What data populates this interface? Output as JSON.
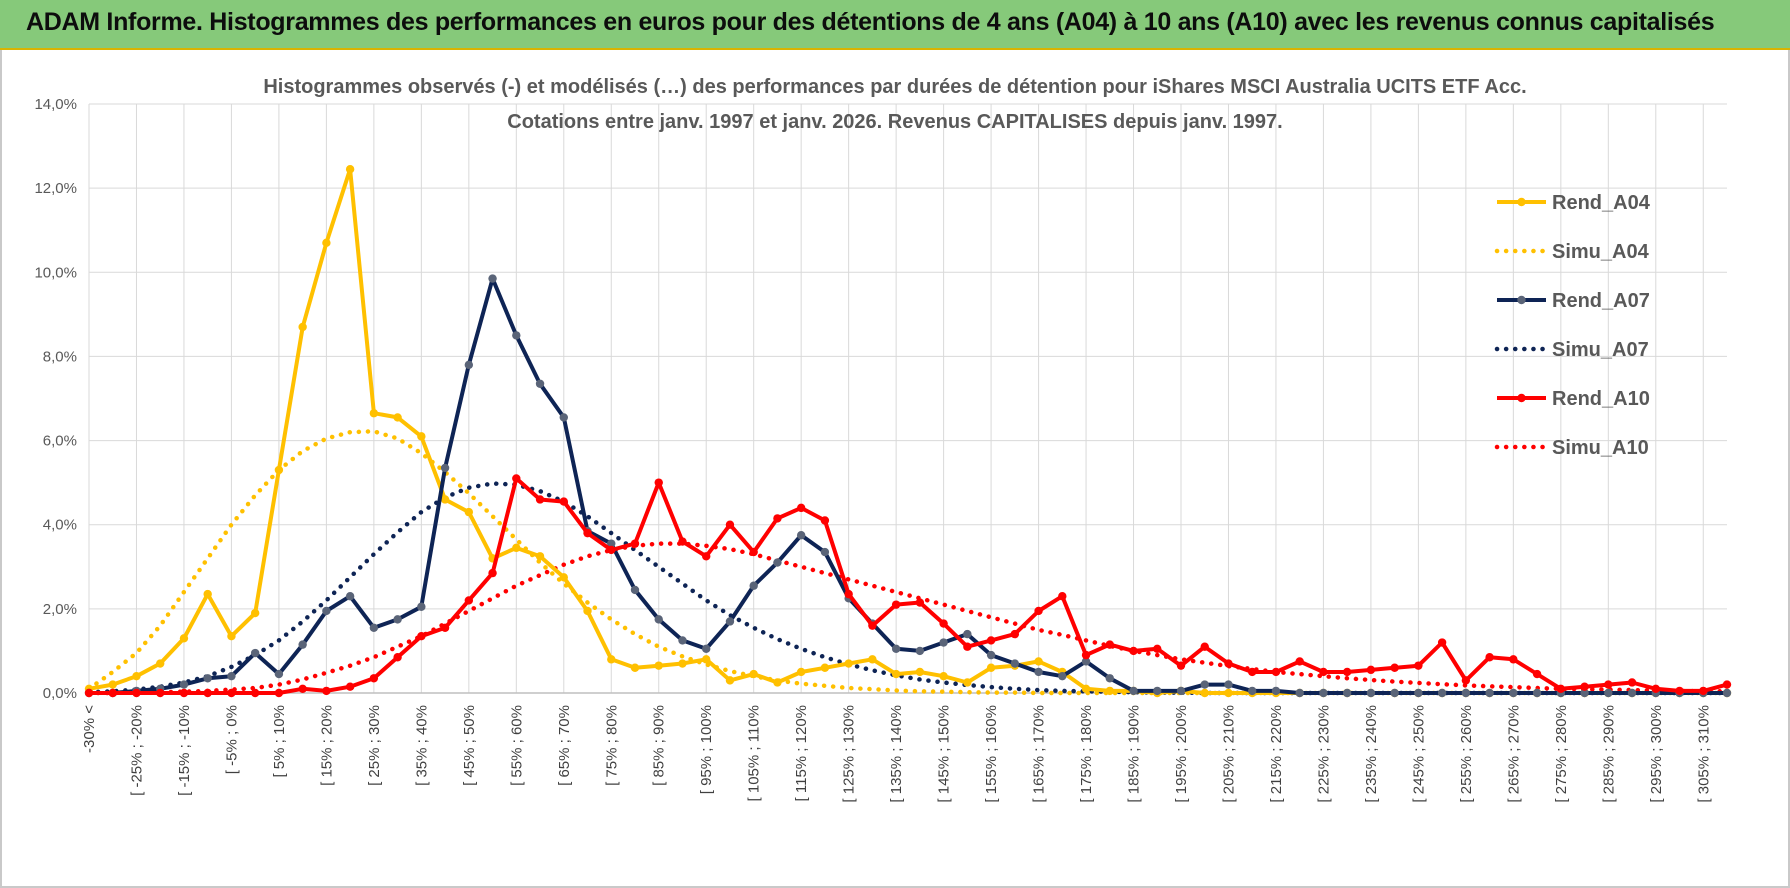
{
  "banner": {
    "title": "ADAM Informe. Histogrammes des performances en euros pour des détentions de 4 ans (A04) à 10 ans (A10) avec les revenus connus capitalisés"
  },
  "colors": {
    "banner_bg": "#86c97a",
    "A04": "#ffc000",
    "A07": "#0e2455",
    "A10": "#ff0000",
    "grid": "#d9d9d9"
  },
  "chart_data": {
    "type": "line",
    "title_lines": [
      "Histogrammes observés (-) et modélisés (…) des performances par durées de détention pour iShares MSCI Australia UCITS ETF Acc.",
      "Cotations entre janv. 1997 et janv. 2026. Revenus CAPITALISES depuis janv. 1997."
    ],
    "ylim": [
      0,
      14
    ],
    "y_ticks": [
      0,
      2,
      4,
      6,
      8,
      10,
      12,
      14
    ],
    "y_tick_labels": [
      "0,0%",
      "2,0%",
      "4,0%",
      "6,0%",
      "8,0%",
      "10,0%",
      "12,0%",
      "14,0%"
    ],
    "x_tick_labels": [
      "-30% <",
      "[ -25% ; -20%",
      "[ -15% ; -10%",
      "[ -5% ; 0%",
      "[ 5% ; 10%",
      "[ 15% ; 20%",
      "[ 25% ; 30%",
      "[ 35% ; 40%",
      "[ 45% ; 50%",
      "[ 55% ; 60%",
      "[ 65% ; 70%",
      "[ 75% ; 80%",
      "[ 85% ; 90%",
      "[ 95% ; 100%",
      "[ 105% ; 110%",
      "[ 115% ; 120%",
      "[ 125% ; 130%",
      "[ 135% ; 140%",
      "[ 145% ; 150%",
      "[ 155% ; 160%",
      "[ 165% ; 170%",
      "[ 175% ; 180%",
      "[ 185% ; 190%",
      "[ 195% ; 200%",
      "[ 205% ; 210%",
      "[ 215% ; 220%",
      "[ 225% ; 230%",
      "[ 235% ; 240%",
      "[ 245% ; 250%",
      "[ 255% ; 260%",
      "[ 265% ; 270%",
      "[ 275% ; 280%",
      "[ 285% ; 290%",
      "[ 295% ; 300%",
      "[ 305% ; 310%"
    ],
    "n_points": 70,
    "series": [
      {
        "name": "Rend_A04",
        "color": "#ffc000",
        "style": "solid",
        "values": [
          0.1,
          0.2,
          0.4,
          0.7,
          1.3,
          2.35,
          1.35,
          1.9,
          5.3,
          8.7,
          10.7,
          12.45,
          6.65,
          6.55,
          6.1,
          4.6,
          4.3,
          3.2,
          3.45,
          3.25,
          2.75,
          1.95,
          0.8,
          0.6,
          0.65,
          0.7,
          0.8,
          0.3,
          0.45,
          0.25,
          0.5,
          0.6,
          0.7,
          0.8,
          0.45,
          0.5,
          0.4,
          0.25,
          0.6,
          0.65,
          0.75,
          0.5,
          0.1,
          0.05,
          0.05,
          0.0,
          0.05,
          0.0,
          0.0,
          0.0,
          0.0,
          0.0,
          0.0,
          0.0,
          0.0,
          0.0,
          0.0,
          0.0,
          0.0,
          0.0,
          0.0,
          0.0,
          0.0,
          0.0,
          0.0,
          0.0,
          0.0,
          0.0,
          0.0,
          0.0
        ]
      },
      {
        "name": "Simu_A04",
        "color": "#ffc000",
        "style": "dotted",
        "values": [
          0.1,
          0.5,
          0.95,
          1.6,
          2.4,
          3.2,
          4.0,
          4.7,
          5.3,
          5.75,
          6.05,
          6.2,
          6.22,
          6.05,
          5.7,
          5.25,
          4.75,
          4.2,
          3.65,
          3.1,
          2.6,
          2.15,
          1.75,
          1.4,
          1.1,
          0.87,
          0.68,
          0.52,
          0.4,
          0.3,
          0.22,
          0.17,
          0.12,
          0.09,
          0.06,
          0.04,
          0.03,
          0.02,
          0.01,
          0.01,
          0.0,
          0.0,
          0.0,
          0.0,
          0.0,
          0.0,
          0.0,
          0.0,
          0.0,
          0.0,
          0.0,
          0.0,
          0.0,
          0.0,
          0.0,
          0.0,
          0.0,
          0.0,
          0.0,
          0.0,
          0.0,
          0.0,
          0.0,
          0.0,
          0.0,
          0.0,
          0.0,
          0.0,
          0.0,
          0.0
        ]
      },
      {
        "name": "Rend_A07",
        "color": "#0e2455",
        "style": "solid",
        "values": [
          0.0,
          0.0,
          0.05,
          0.1,
          0.2,
          0.35,
          0.4,
          0.95,
          0.45,
          1.15,
          1.95,
          2.3,
          1.55,
          1.75,
          2.05,
          5.35,
          7.8,
          9.85,
          8.5,
          7.35,
          6.55,
          3.85,
          3.55,
          2.45,
          1.75,
          1.25,
          1.05,
          1.7,
          2.55,
          3.1,
          3.75,
          3.35,
          2.25,
          1.65,
          1.05,
          1.0,
          1.2,
          1.4,
          0.9,
          0.7,
          0.5,
          0.4,
          0.75,
          0.35,
          0.05,
          0.05,
          0.05,
          0.2,
          0.2,
          0.05,
          0.05,
          0.0,
          0.0,
          0.0,
          0.0,
          0.0,
          0.0,
          0.0,
          0.0,
          0.0,
          0.0,
          0.0,
          0.0,
          0.0,
          0.0,
          0.0,
          0.0,
          0.0,
          0.0,
          0.0
        ]
      },
      {
        "name": "Simu_A07",
        "color": "#0e2455",
        "style": "dotted",
        "values": [
          0.02,
          0.04,
          0.08,
          0.15,
          0.25,
          0.4,
          0.62,
          0.9,
          1.25,
          1.7,
          2.2,
          2.75,
          3.3,
          3.82,
          4.3,
          4.65,
          4.88,
          4.98,
          4.95,
          4.8,
          4.55,
          4.2,
          3.8,
          3.4,
          3.0,
          2.6,
          2.2,
          1.85,
          1.55,
          1.28,
          1.05,
          0.85,
          0.68,
          0.54,
          0.42,
          0.32,
          0.25,
          0.19,
          0.14,
          0.1,
          0.07,
          0.05,
          0.04,
          0.03,
          0.02,
          0.01,
          0.01,
          0.0,
          0.0,
          0.0,
          0.0,
          0.0,
          0.0,
          0.0,
          0.0,
          0.0,
          0.0,
          0.0,
          0.0,
          0.0,
          0.0,
          0.0,
          0.0,
          0.0,
          0.0,
          0.0,
          0.0,
          0.0,
          0.0,
          0.0
        ]
      },
      {
        "name": "Rend_A10",
        "color": "#ff0000",
        "style": "solid",
        "values": [
          0.0,
          0.0,
          0.0,
          0.0,
          0.0,
          0.0,
          0.0,
          0.0,
          0.0,
          0.1,
          0.05,
          0.15,
          0.35,
          0.85,
          1.35,
          1.55,
          2.2,
          2.85,
          5.1,
          4.6,
          4.55,
          3.8,
          3.4,
          3.55,
          5.0,
          3.6,
          3.25,
          4.0,
          3.35,
          4.15,
          4.4,
          4.1,
          2.35,
          1.6,
          2.1,
          2.15,
          1.65,
          1.1,
          1.25,
          1.4,
          1.95,
          2.3,
          0.9,
          1.15,
          1.0,
          1.05,
          0.65,
          1.1,
          0.7,
          0.5,
          0.5,
          0.75,
          0.5,
          0.5,
          0.55,
          0.6,
          0.65,
          1.2,
          0.3,
          0.85,
          0.8,
          0.45,
          0.1,
          0.15,
          0.2,
          0.25,
          0.1,
          0.05,
          0.05,
          0.2
        ]
      },
      {
        "name": "Simu_A10",
        "color": "#ff0000",
        "style": "dotted",
        "values": [
          0.0,
          0.0,
          0.01,
          0.02,
          0.03,
          0.05,
          0.08,
          0.12,
          0.2,
          0.32,
          0.48,
          0.65,
          0.85,
          1.1,
          1.35,
          1.65,
          1.95,
          2.25,
          2.55,
          2.8,
          3.05,
          3.25,
          3.4,
          3.5,
          3.55,
          3.55,
          3.5,
          3.42,
          3.3,
          3.15,
          3.0,
          2.85,
          2.7,
          2.55,
          2.4,
          2.25,
          2.1,
          1.95,
          1.8,
          1.65,
          1.5,
          1.38,
          1.25,
          1.12,
          1.0,
          0.9,
          0.8,
          0.72,
          0.64,
          0.57,
          0.5,
          0.45,
          0.4,
          0.35,
          0.31,
          0.27,
          0.24,
          0.21,
          0.18,
          0.16,
          0.14,
          0.12,
          0.1,
          0.09,
          0.08,
          0.07,
          0.06,
          0.05,
          0.04,
          0.04
        ]
      }
    ],
    "legend": [
      "Rend_A04",
      "Simu_A04",
      "Rend_A07",
      "Simu_A07",
      "Rend_A10",
      "Simu_A10"
    ],
    "legend_position": "right"
  }
}
